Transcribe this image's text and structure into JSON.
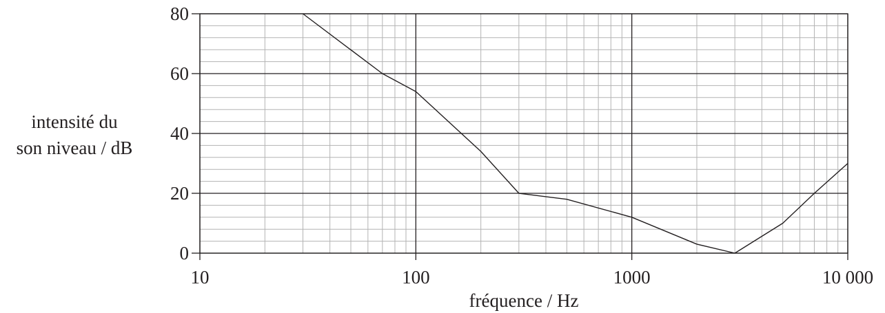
{
  "chart_data": {
    "type": "line",
    "title": "",
    "xlabel": "fréquence / Hz",
    "ylabel_lines": [
      "intensité du",
      "son niveau / dB"
    ],
    "x_scale": "log",
    "xlim": [
      10,
      10000
    ],
    "ylim": [
      0,
      80
    ],
    "x_ticks": [
      10,
      100,
      1000,
      10000
    ],
    "x_tick_labels": [
      "10",
      "100",
      "1000",
      "10 000"
    ],
    "y_ticks": [
      0,
      20,
      40,
      60,
      80
    ],
    "y_tick_labels": [
      "0",
      "20",
      "40",
      "60",
      "80"
    ],
    "y_minor_step": 4,
    "grid": true,
    "legend": "none",
    "series": [
      {
        "x": [
          30,
          70,
          100,
          200,
          300,
          500,
          1000,
          2000,
          3000,
          5000,
          7000,
          10000
        ],
        "y": [
          80,
          60,
          54,
          34,
          20,
          18,
          12,
          3,
          0,
          10,
          20,
          30
        ]
      }
    ],
    "colors": {
      "line": "#231f20",
      "major_grid": "#231f20",
      "minor_grid": "#b3b3b3",
      "text": "#231f20"
    }
  }
}
